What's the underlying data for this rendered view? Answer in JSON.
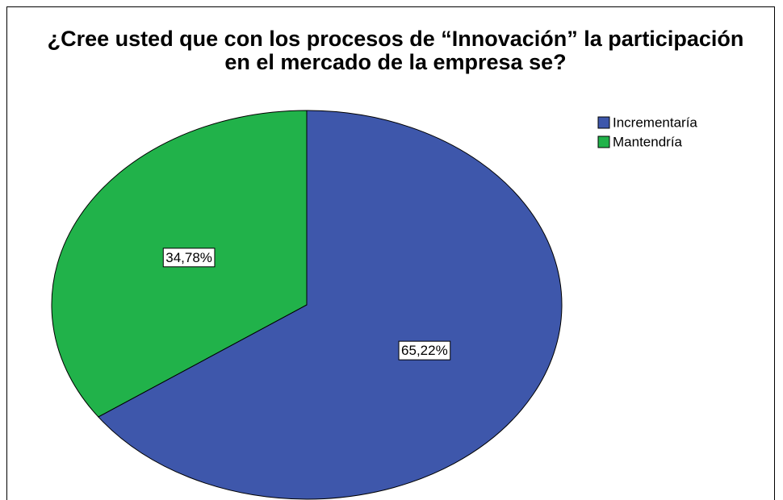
{
  "chart_data": {
    "type": "pie",
    "title": "¿Cree usted que con los procesos de “Innovación” la participación en el mercado de la empresa se?",
    "categories": [
      "Incrementaría",
      "Mantendría"
    ],
    "values": [
      65.22,
      34.78
    ],
    "value_labels": [
      "65,22%",
      "34,78%"
    ],
    "colors": [
      "#3e57ab",
      "#21b24a"
    ],
    "legend": "top-right"
  }
}
